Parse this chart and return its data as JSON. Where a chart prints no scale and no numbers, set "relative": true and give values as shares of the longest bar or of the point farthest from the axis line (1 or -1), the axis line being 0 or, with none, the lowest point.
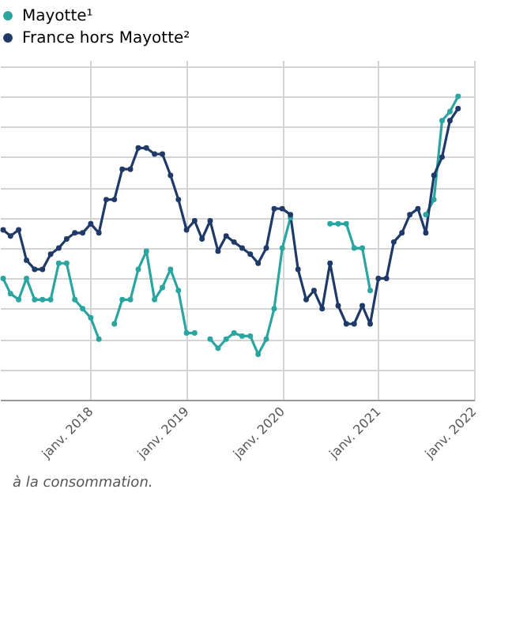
{
  "chart_data": {
    "type": "line",
    "relative": true,
    "marker": "circle",
    "grid": true,
    "legend": "top left",
    "x": [
      "2017-02",
      "2017-03",
      "2017-04",
      "2017-05",
      "2017-06",
      "2017-07",
      "2017-08",
      "2017-09",
      "2017-10",
      "2017-11",
      "2017-12",
      "2018-01",
      "2018-02",
      "2018-03",
      "2018-04",
      "2018-05",
      "2018-06",
      "2018-07",
      "2018-08",
      "2018-09",
      "2018-10",
      "2018-11",
      "2018-12",
      "2019-01",
      "2019-02",
      "2019-03",
      "2019-04",
      "2019-05",
      "2019-06",
      "2019-07",
      "2019-08",
      "2019-09",
      "2019-10",
      "2019-11",
      "2019-12",
      "2020-01",
      "2020-02",
      "2020-03",
      "2020-04",
      "2020-05",
      "2020-06",
      "2020-07",
      "2020-08",
      "2020-09",
      "2020-10",
      "2020-11",
      "2020-12",
      "2021-01",
      "2021-02",
      "2021-03",
      "2021-04",
      "2021-05",
      "2021-06",
      "2021-07",
      "2021-08",
      "2021-09",
      "2021-10",
      "2021-11"
    ],
    "xlim": [
      "2017-01-20",
      "2022-01"
    ],
    "xticks": [
      {
        "value": "2018-01",
        "label": "janv. 2018"
      },
      {
        "value": "2019-01",
        "label": "janv. 2019"
      },
      {
        "value": "2020-01",
        "label": "janv. 2020"
      },
      {
        "value": "2021-01",
        "label": "janv. 2021"
      },
      {
        "value": "2022-01",
        "label": "janv. 2022"
      }
    ],
    "series": [
      {
        "name": "Mayotte¹",
        "color": "#2aa5a0",
        "values": [
          0.4,
          0.35,
          0.33,
          0.4,
          0.33,
          0.33,
          0.33,
          0.45,
          0.45,
          0.33,
          0.3,
          0.27,
          0.2,
          null,
          0.25,
          0.33,
          0.33,
          0.43,
          0.49,
          0.33,
          0.37,
          0.43,
          0.36,
          0.22,
          0.22,
          null,
          0.2,
          0.17,
          0.2,
          0.22,
          0.21,
          0.21,
          0.15,
          0.2,
          0.3,
          0.5,
          0.6,
          null,
          null,
          null,
          null,
          0.58,
          0.58,
          0.58,
          0.5,
          0.5,
          0.36,
          null,
          null,
          null,
          null,
          null,
          null,
          0.61,
          0.66,
          0.92,
          0.95,
          1
        ]
      },
      {
        "name": "France hors Mayotte²",
        "color": "#1f3a68",
        "values": [
          0.56,
          0.54,
          0.56,
          0.46,
          0.43,
          0.43,
          0.48,
          0.5,
          0.53,
          0.55,
          0.55,
          0.58,
          0.55,
          0.66,
          0.66,
          0.76,
          0.76,
          0.83,
          0.83,
          0.81,
          0.81,
          0.74,
          0.66,
          0.56,
          0.59,
          0.53,
          0.59,
          0.49,
          0.54,
          0.52,
          0.5,
          0.48,
          0.45,
          0.5,
          0.63,
          0.63,
          0.61,
          0.43,
          0.33,
          0.36,
          0.3,
          0.45,
          0.31,
          0.25,
          0.25,
          0.31,
          0.25,
          0.4,
          0.4,
          0.52,
          0.55,
          0.61,
          0.63,
          0.55,
          0.74,
          0.8,
          0.92,
          0.96
        ]
      }
    ],
    "annotations": [
      "à la consommation."
    ]
  }
}
